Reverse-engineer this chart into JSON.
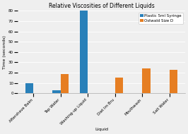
{
  "title": "Relative Viscosities of Different Liquids",
  "xlabel": "Liquid",
  "ylabel": "Time (seconds)",
  "categories": [
    "Aftershave Balm",
    "Tap Water",
    "Washing-up Liquid",
    "Diet Im Bru",
    "Mouthwash",
    "Salt Water"
  ],
  "series": [
    {
      "name": "Plastic 5ml Syringe",
      "color": "#2980b9",
      "values": [
        10,
        3,
        80,
        0,
        0,
        0
      ]
    },
    {
      "name": "Ostwald Size D",
      "color": "#e67e22",
      "values": [
        0,
        19,
        0,
        15,
        24,
        23
      ]
    }
  ],
  "ylim": [
    0,
    80
  ],
  "yticks": [
    0,
    10,
    20,
    30,
    40,
    50,
    60,
    70,
    80
  ],
  "background_color": "#efefef",
  "title_fontsize": 5.5,
  "axis_fontsize": 4.5,
  "tick_fontsize": 4.0,
  "legend_fontsize": 4.0,
  "bar_width": 0.3
}
